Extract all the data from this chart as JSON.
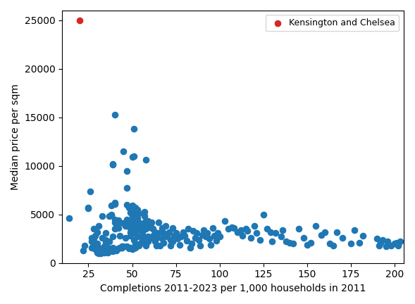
{
  "xlabel": "Completions 2011-2023 per 1,000 households in 2011",
  "ylabel": "Median price per sqm",
  "xlim": [
    10,
    205
  ],
  "ylim": [
    0,
    26000
  ],
  "xticks": [
    25,
    50,
    75,
    100,
    125,
    150,
    175,
    200
  ],
  "yticks": [
    0,
    5000,
    10000,
    15000,
    20000,
    25000
  ],
  "blue_color": "#1f77b4",
  "red_color": "#d62728",
  "legend_label": "Kensington and Chelsea",
  "blue_points": [
    [
      14,
      4600
    ],
    [
      22,
      1300
    ],
    [
      23,
      1800
    ],
    [
      25,
      5700
    ],
    [
      25,
      5600
    ],
    [
      26,
      7400
    ],
    [
      27,
      2600
    ],
    [
      27,
      2200
    ],
    [
      27,
      1600
    ],
    [
      28,
      3500
    ],
    [
      28,
      1900
    ],
    [
      28,
      2500
    ],
    [
      29,
      1400
    ],
    [
      29,
      2800
    ],
    [
      30,
      1400
    ],
    [
      30,
      1100
    ],
    [
      30,
      3200
    ],
    [
      30,
      2000
    ],
    [
      31,
      1000
    ],
    [
      31,
      3800
    ],
    [
      32,
      1000
    ],
    [
      32,
      1500
    ],
    [
      33,
      1200
    ],
    [
      33,
      2600
    ],
    [
      33,
      4800
    ],
    [
      34,
      1100
    ],
    [
      34,
      1700
    ],
    [
      35,
      2100
    ],
    [
      35,
      3100
    ],
    [
      35,
      2400
    ],
    [
      36,
      1100
    ],
    [
      36,
      1600
    ],
    [
      37,
      4800
    ],
    [
      37,
      2200
    ],
    [
      37,
      1200
    ],
    [
      38,
      4900
    ],
    [
      38,
      5000
    ],
    [
      38,
      5900
    ],
    [
      38,
      1400
    ],
    [
      38,
      1500
    ],
    [
      39,
      2700
    ],
    [
      39,
      10200
    ],
    [
      39,
      10100
    ],
    [
      39,
      1200
    ],
    [
      39,
      1600
    ],
    [
      40,
      15300
    ],
    [
      40,
      6200
    ],
    [
      40,
      6100
    ],
    [
      40,
      4500
    ],
    [
      40,
      4200
    ],
    [
      40,
      3500
    ],
    [
      41,
      1300
    ],
    [
      41,
      1400
    ],
    [
      41,
      4000
    ],
    [
      42,
      4400
    ],
    [
      42,
      1500
    ],
    [
      42,
      3600
    ],
    [
      43,
      2800
    ],
    [
      43,
      1600
    ],
    [
      43,
      4200
    ],
    [
      44,
      1700
    ],
    [
      44,
      1600
    ],
    [
      44,
      1600
    ],
    [
      45,
      4100
    ],
    [
      45,
      11500
    ],
    [
      45,
      1700
    ],
    [
      46,
      3800
    ],
    [
      46,
      2600
    ],
    [
      47,
      9500
    ],
    [
      47,
      7700
    ],
    [
      47,
      6000
    ],
    [
      47,
      4500
    ],
    [
      47,
      3800
    ],
    [
      47,
      1700
    ],
    [
      48,
      1600
    ],
    [
      48,
      1500
    ],
    [
      48,
      4000
    ],
    [
      48,
      5700
    ],
    [
      49,
      3200
    ],
    [
      49,
      3600
    ],
    [
      49,
      5600
    ],
    [
      49,
      5200
    ],
    [
      49,
      2800
    ],
    [
      49,
      1600
    ],
    [
      49,
      4200
    ],
    [
      50,
      10900
    ],
    [
      50,
      5900
    ],
    [
      50,
      4500
    ],
    [
      50,
      1400
    ],
    [
      50,
      3700
    ],
    [
      50,
      4900
    ],
    [
      50,
      4800
    ],
    [
      50,
      4500
    ],
    [
      51,
      3600
    ],
    [
      51,
      2400
    ],
    [
      51,
      13800
    ],
    [
      51,
      11000
    ],
    [
      51,
      5300
    ],
    [
      52,
      1600
    ],
    [
      52,
      3100
    ],
    [
      52,
      4200
    ],
    [
      52,
      4900
    ],
    [
      52,
      5700
    ],
    [
      52,
      2000
    ],
    [
      52,
      3800
    ],
    [
      53,
      4000
    ],
    [
      53,
      5100
    ],
    [
      53,
      5500
    ],
    [
      53,
      3500
    ],
    [
      53,
      2700
    ],
    [
      53,
      4600
    ],
    [
      54,
      3700
    ],
    [
      54,
      1800
    ],
    [
      54,
      1900
    ],
    [
      54,
      4100
    ],
    [
      54,
      5100
    ],
    [
      54,
      4200
    ],
    [
      55,
      3400
    ],
    [
      55,
      2100
    ],
    [
      55,
      3400
    ],
    [
      55,
      2700
    ],
    [
      56,
      3100
    ],
    [
      56,
      2200
    ],
    [
      56,
      3900
    ],
    [
      56,
      2800
    ],
    [
      57,
      2400
    ],
    [
      57,
      4800
    ],
    [
      57,
      5300
    ],
    [
      57,
      4200
    ],
    [
      58,
      1800
    ],
    [
      58,
      10600
    ],
    [
      58,
      3500
    ],
    [
      59,
      2700
    ],
    [
      59,
      4300
    ],
    [
      59,
      2200
    ],
    [
      60,
      3900
    ],
    [
      60,
      2500
    ],
    [
      61,
      3600
    ],
    [
      61,
      4200
    ],
    [
      62,
      2800
    ],
    [
      62,
      3500
    ],
    [
      63,
      2200
    ],
    [
      63,
      3200
    ],
    [
      64,
      2600
    ],
    [
      64,
      1800
    ],
    [
      65,
      4200
    ],
    [
      65,
      3100
    ],
    [
      66,
      1800
    ],
    [
      67,
      3600
    ],
    [
      67,
      2500
    ],
    [
      68,
      3100
    ],
    [
      68,
      2100
    ],
    [
      69,
      3800
    ],
    [
      70,
      2700
    ],
    [
      71,
      3200
    ],
    [
      72,
      2400
    ],
    [
      72,
      1800
    ],
    [
      73,
      3600
    ],
    [
      73,
      2200
    ],
    [
      74,
      2800
    ],
    [
      75,
      3100
    ],
    [
      76,
      2500
    ],
    [
      77,
      1900
    ],
    [
      78,
      2700
    ],
    [
      79,
      3200
    ],
    [
      80,
      2800
    ],
    [
      81,
      2300
    ],
    [
      82,
      3500
    ],
    [
      83,
      1600
    ],
    [
      84,
      2000
    ],
    [
      85,
      3300
    ],
    [
      86,
      2600
    ],
    [
      87,
      3100
    ],
    [
      88,
      2400
    ],
    [
      89,
      1800
    ],
    [
      90,
      2900
    ],
    [
      91,
      3400
    ],
    [
      92,
      2700
    ],
    [
      93,
      3100
    ],
    [
      94,
      2500
    ],
    [
      95,
      1900
    ],
    [
      96,
      3600
    ],
    [
      97,
      2800
    ],
    [
      98,
      2300
    ],
    [
      99,
      3100
    ],
    [
      100,
      2700
    ],
    [
      103,
      4300
    ],
    [
      105,
      3500
    ],
    [
      107,
      3700
    ],
    [
      108,
      3600
    ],
    [
      110,
      3200
    ],
    [
      112,
      3400
    ],
    [
      113,
      2800
    ],
    [
      115,
      3500
    ],
    [
      116,
      3300
    ],
    [
      118,
      2600
    ],
    [
      120,
      3800
    ],
    [
      121,
      3100
    ],
    [
      123,
      2400
    ],
    [
      125,
      5000
    ],
    [
      127,
      3500
    ],
    [
      129,
      3200
    ],
    [
      130,
      2200
    ],
    [
      132,
      3100
    ],
    [
      135,
      2700
    ],
    [
      136,
      3400
    ],
    [
      138,
      2200
    ],
    [
      140,
      2100
    ],
    [
      142,
      2000
    ],
    [
      145,
      3500
    ],
    [
      148,
      2600
    ],
    [
      150,
      1900
    ],
    [
      152,
      2100
    ],
    [
      155,
      3800
    ],
    [
      158,
      2900
    ],
    [
      160,
      3200
    ],
    [
      163,
      2000
    ],
    [
      165,
      1800
    ],
    [
      167,
      3200
    ],
    [
      170,
      2600
    ],
    [
      175,
      2000
    ],
    [
      177,
      3400
    ],
    [
      180,
      2100
    ],
    [
      182,
      2800
    ],
    [
      190,
      2500
    ],
    [
      191,
      1800
    ],
    [
      192,
      2100
    ],
    [
      193,
      2400
    ],
    [
      195,
      1700
    ],
    [
      196,
      2200
    ],
    [
      198,
      1800
    ],
    [
      200,
      2000
    ],
    [
      201,
      2100
    ],
    [
      202,
      1800
    ],
    [
      203,
      2200
    ]
  ],
  "red_point": [
    20,
    25000
  ],
  "marker_size": 35,
  "figsize": [
    5.89,
    4.32
  ],
  "dpi": 100
}
